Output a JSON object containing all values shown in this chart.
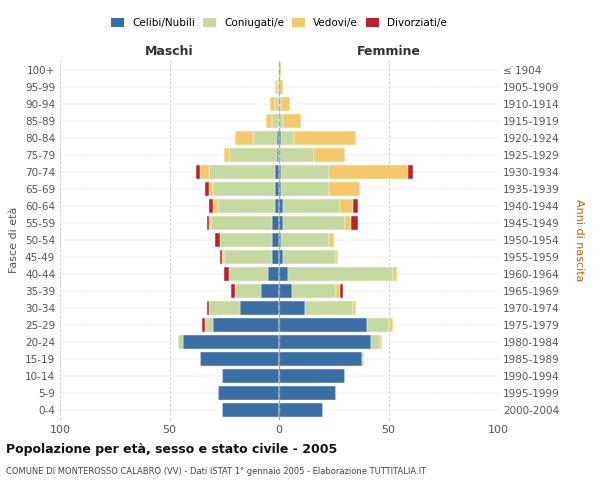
{
  "age_groups": [
    "0-4",
    "5-9",
    "10-14",
    "15-19",
    "20-24",
    "25-29",
    "30-34",
    "35-39",
    "40-44",
    "45-49",
    "50-54",
    "55-59",
    "60-64",
    "65-69",
    "70-74",
    "75-79",
    "80-84",
    "85-89",
    "90-94",
    "95-99",
    "100+"
  ],
  "birth_years": [
    "2000-2004",
    "1995-1999",
    "1990-1994",
    "1985-1989",
    "1980-1984",
    "1975-1979",
    "1970-1974",
    "1965-1969",
    "1960-1964",
    "1955-1959",
    "1950-1954",
    "1945-1949",
    "1940-1944",
    "1935-1939",
    "1930-1934",
    "1925-1929",
    "1920-1924",
    "1915-1919",
    "1910-1914",
    "1905-1909",
    "≤ 1904"
  ],
  "male_celibi": [
    26,
    28,
    26,
    36,
    44,
    30,
    18,
    8,
    5,
    3,
    3,
    3,
    2,
    2,
    2,
    1,
    1,
    0,
    0,
    0,
    0
  ],
  "male_coniugati": [
    0,
    0,
    0,
    0,
    2,
    4,
    14,
    12,
    18,
    22,
    24,
    28,
    26,
    28,
    30,
    22,
    11,
    3,
    2,
    1,
    0
  ],
  "male_vedovi": [
    0,
    0,
    0,
    0,
    0,
    0,
    0,
    0,
    0,
    1,
    0,
    1,
    2,
    2,
    4,
    2,
    8,
    3,
    2,
    1,
    0
  ],
  "male_divorziati": [
    0,
    0,
    0,
    0,
    0,
    1,
    1,
    2,
    2,
    1,
    2,
    1,
    2,
    2,
    2,
    0,
    0,
    0,
    0,
    0,
    0
  ],
  "female_celibi": [
    20,
    26,
    30,
    38,
    42,
    40,
    12,
    6,
    4,
    2,
    1,
    2,
    2,
    1,
    1,
    0,
    1,
    0,
    0,
    0,
    0
  ],
  "female_coniugati": [
    0,
    0,
    0,
    1,
    4,
    10,
    22,
    20,
    48,
    24,
    22,
    28,
    26,
    22,
    22,
    16,
    6,
    2,
    1,
    0,
    0
  ],
  "female_vedovi": [
    0,
    0,
    0,
    0,
    1,
    2,
    1,
    2,
    2,
    1,
    2,
    3,
    6,
    14,
    36,
    14,
    28,
    8,
    4,
    2,
    1
  ],
  "female_divorziati": [
    0,
    0,
    0,
    0,
    0,
    0,
    0,
    1,
    0,
    0,
    0,
    3,
    2,
    0,
    2,
    0,
    0,
    0,
    0,
    0,
    0
  ],
  "color_celibi": "#3a6ea5",
  "color_coniugati": "#c5d9a0",
  "color_vedovi": "#f5c96a",
  "color_divorziati": "#c0202a",
  "title": "Popolazione per età, sesso e stato civile - 2005",
  "subtitle": "COMUNE DI MONTEROSSO CALABRO (VV) - Dati ISTAT 1° gennaio 2005 - Elaborazione TUTTITALIA.IT",
  "xlabel_left": "Maschi",
  "xlabel_right": "Femmine",
  "ylabel_left": "Fasce di età",
  "ylabel_right": "Anni di nascita",
  "xlim": 100,
  "bg_color": "#ffffff",
  "grid_color": "#cccccc"
}
